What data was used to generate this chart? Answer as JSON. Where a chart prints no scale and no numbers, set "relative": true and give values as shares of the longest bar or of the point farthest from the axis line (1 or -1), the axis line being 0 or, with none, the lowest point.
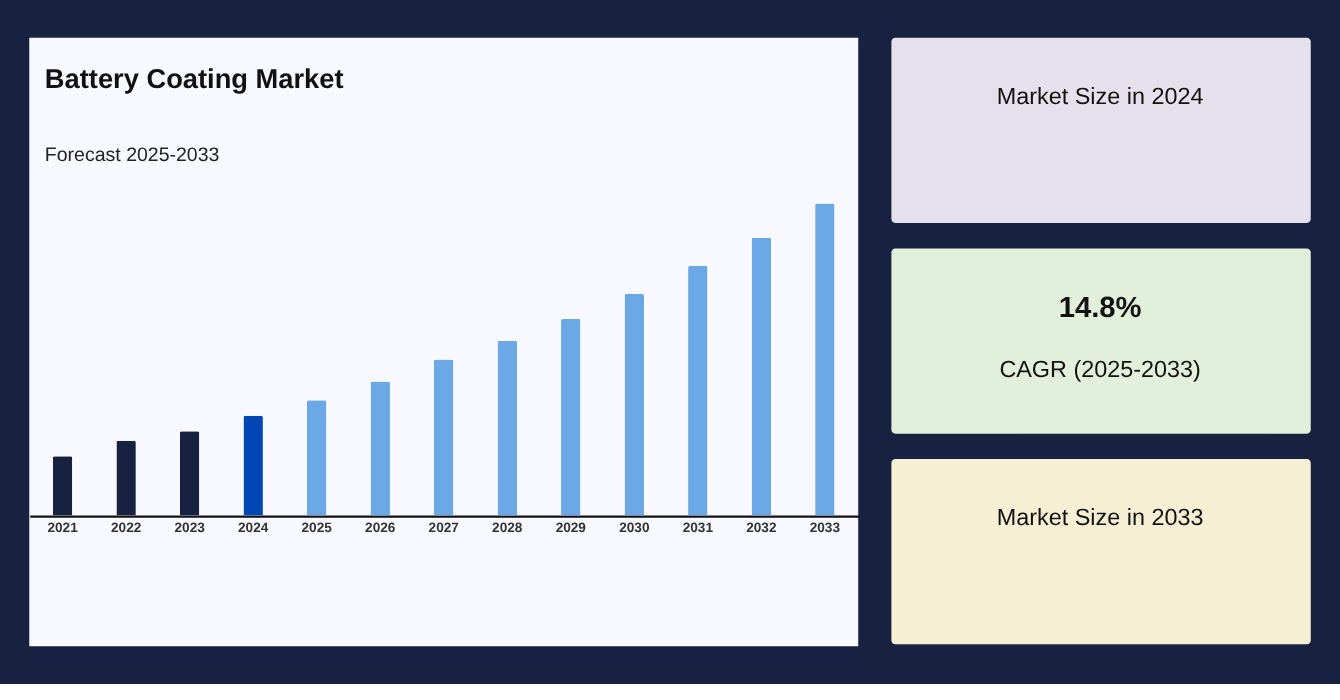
{
  "chart_data": [
    {
      "type": "bar",
      "title": "Battery Coating Market",
      "subtitle": "Forecast 2025-2033",
      "relative": true,
      "categories": [
        "2021",
        "2022",
        "2023",
        "2024",
        "2025",
        "2026",
        "2027",
        "2028",
        "2029",
        "2030",
        "2031",
        "2032",
        "2033"
      ],
      "values": [
        0.19,
        0.24,
        0.27,
        0.32,
        0.37,
        0.43,
        0.5,
        0.56,
        0.63,
        0.71,
        0.8,
        0.89,
        1
      ],
      "colors": [
        "#172240",
        "#172240",
        "#172240",
        "#0047b3",
        "#6ca8e6",
        "#6ca8e6",
        "#6ca8e6",
        "#6ca8e6",
        "#6ca8e6",
        "#6ca8e6",
        "#6ca8e6",
        "#6ca8e6",
        "#6ca8e6"
      ],
      "legend": false
    },
    {
      "type": "other",
      "title": "Market Size in 2024"
    },
    {
      "type": "other",
      "title": "14.8%",
      "subtitle": "CAGR (2025-2033)"
    },
    {
      "type": "other",
      "title": "Market Size in 2033"
    }
  ]
}
